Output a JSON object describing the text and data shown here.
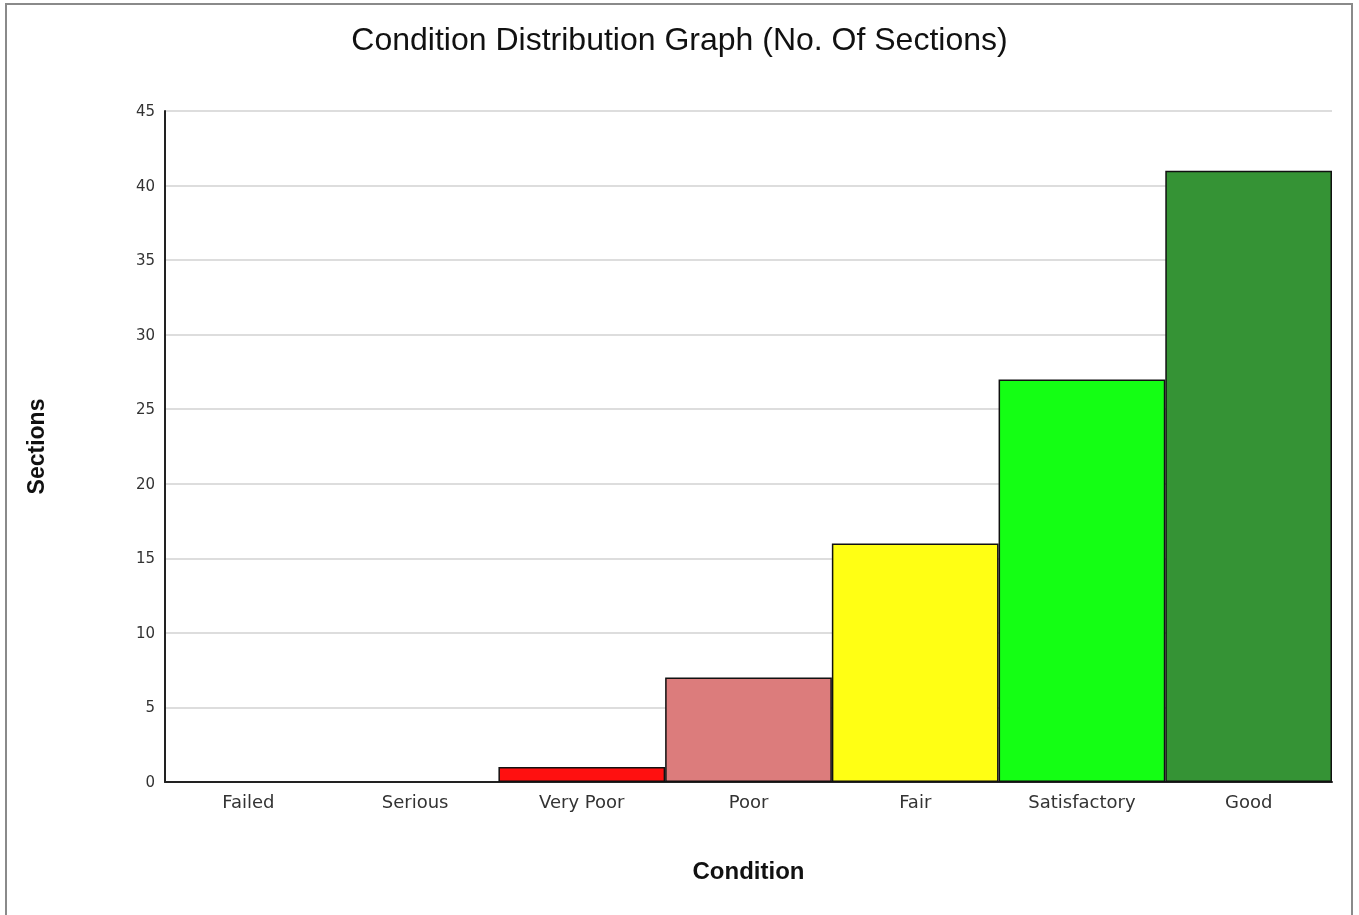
{
  "chart_data": {
    "type": "bar",
    "title": "Condition Distribution Graph (No. Of Sections)",
    "xlabel": "Condition",
    "ylabel": "Sections",
    "categories": [
      "Failed",
      "Serious",
      "Very Poor",
      "Poor",
      "Fair",
      "Satisfactory",
      "Good"
    ],
    "values": [
      0,
      0,
      1,
      7,
      16,
      27,
      41
    ],
    "colors": [
      null,
      null,
      "#ff1010",
      "#dc7c7c",
      "#ffff14",
      "#14ff14",
      "#359335"
    ],
    "ylim": [
      0,
      45
    ],
    "yticks": [
      0,
      5,
      10,
      15,
      20,
      25,
      30,
      35,
      40,
      45
    ],
    "grid": "y"
  }
}
